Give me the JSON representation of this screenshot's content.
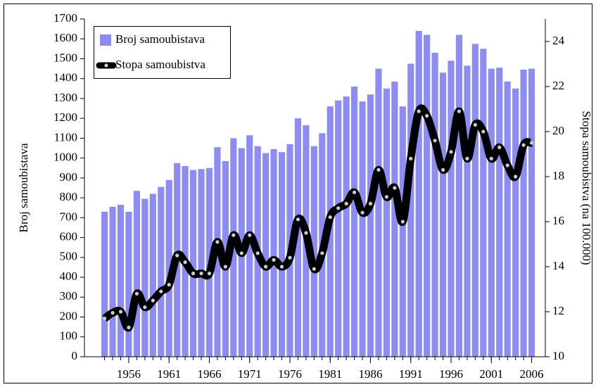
{
  "chart_data": {
    "type": "bar",
    "ylabel": "Broj samoubistava",
    "y2label": "Stopa samoubistva (na 100.000)",
    "x": [
      1953,
      1954,
      1955,
      1956,
      1957,
      1958,
      1959,
      1960,
      1961,
      1962,
      1963,
      1964,
      1965,
      1966,
      1967,
      1968,
      1969,
      1970,
      1971,
      1972,
      1973,
      1974,
      1975,
      1976,
      1977,
      1978,
      1979,
      1980,
      1981,
      1982,
      1983,
      1984,
      1985,
      1986,
      1987,
      1988,
      1989,
      1990,
      1991,
      1992,
      1993,
      1994,
      1995,
      1996,
      1997,
      1998,
      1999,
      2000,
      2001,
      2002,
      2003,
      2004,
      2005,
      2006
    ],
    "series": [
      {
        "name": "Broj samoubistava",
        "type": "bar",
        "color": "#8c8cf2",
        "values": [
          730,
          755,
          765,
          730,
          835,
          795,
          820,
          855,
          890,
          975,
          960,
          940,
          945,
          950,
          1055,
          985,
          1100,
          1050,
          1115,
          1060,
          1025,
          1045,
          1030,
          1070,
          1200,
          1165,
          1060,
          1125,
          1260,
          1290,
          1310,
          1360,
          1285,
          1320,
          1450,
          1350,
          1385,
          1260,
          1475,
          1640,
          1620,
          1530,
          1430,
          1490,
          1620,
          1465,
          1575,
          1550,
          1450,
          1455,
          1385,
          1350,
          1445,
          1450
        ]
      },
      {
        "name": "Stopa samoubistva",
        "type": "line",
        "axis": "y2",
        "color": "#000000",
        "values": [
          11.7,
          11.95,
          12.0,
          11.3,
          12.8,
          12.2,
          12.5,
          12.9,
          13.2,
          14.5,
          14.2,
          13.7,
          13.7,
          13.7,
          15.1,
          14.0,
          15.4,
          14.6,
          15.4,
          14.6,
          14.0,
          14.3,
          14.0,
          14.4,
          16.1,
          15.5,
          13.9,
          14.6,
          16.2,
          16.6,
          16.8,
          17.3,
          16.4,
          16.8,
          18.3,
          17.1,
          17.5,
          16.0,
          18.8,
          20.9,
          20.7,
          19.6,
          18.3,
          19.1,
          20.9,
          18.8,
          20.3,
          20.0,
          18.8,
          19.3,
          18.5,
          18.0,
          19.4,
          19.5
        ]
      }
    ],
    "xlim": [
      1950.5,
      2007.7
    ],
    "xticks": [
      1956,
      1961,
      1966,
      1971,
      1976,
      1981,
      1986,
      1991,
      1996,
      2001,
      2006
    ],
    "ylim": [
      0,
      1700
    ],
    "yticks": [
      0,
      100,
      200,
      300,
      400,
      500,
      600,
      700,
      800,
      900,
      1000,
      1100,
      1200,
      1300,
      1400,
      1500,
      1600,
      1700
    ],
    "y2lim": [
      10,
      25
    ],
    "y2ticks": [
      10,
      12,
      14,
      16,
      18,
      20,
      22,
      24
    ],
    "legend": "upper left"
  }
}
